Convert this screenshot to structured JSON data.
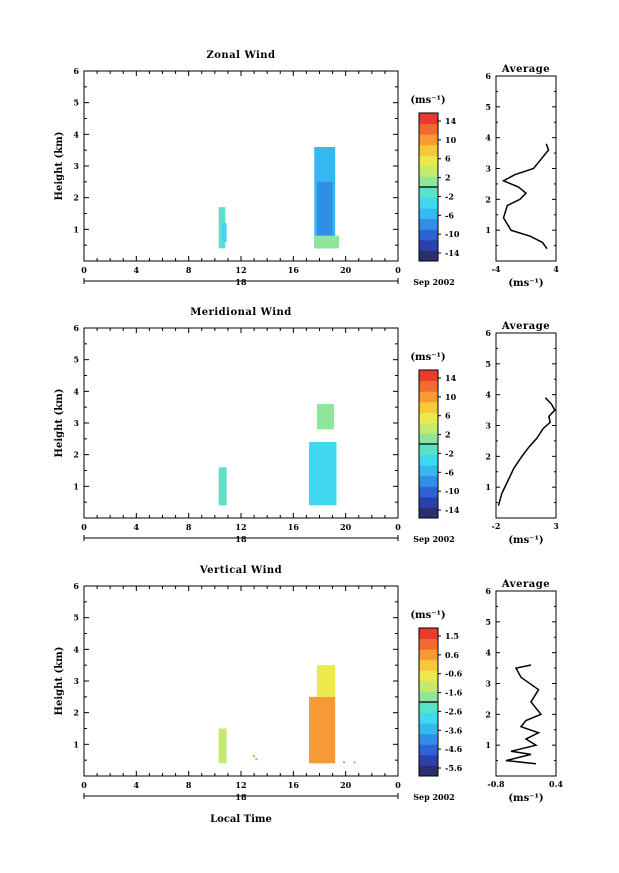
{
  "x_axis_title": "Local Time",
  "date_label": "Sep 2002",
  "day_label": "18",
  "panels": [
    {
      "title": "Zonal Wind",
      "ylabel": "Height (km)",
      "xticks": [
        "0",
        "4",
        "8",
        "12",
        "16",
        "20",
        "0"
      ],
      "yticks": [
        "1",
        "2",
        "3",
        "4",
        "5",
        "6"
      ],
      "colorbar": {
        "unit": "(ms⁻¹)",
        "labels": [
          "14",
          "10",
          "6",
          "2",
          "-2",
          "-6",
          "-10",
          "-14"
        ]
      },
      "average": {
        "title": "Average",
        "xlabel": "(ms⁻¹)",
        "xticks": [
          "-4",
          "4"
        ],
        "yticks": [
          "1",
          "2",
          "3",
          "4",
          "5",
          "6"
        ]
      }
    },
    {
      "title": "Meridional Wind",
      "ylabel": "Height (km)",
      "xticks": [
        "0",
        "4",
        "8",
        "12",
        "16",
        "20",
        "0"
      ],
      "yticks": [
        "1",
        "2",
        "3",
        "4",
        "5",
        "6"
      ],
      "colorbar": {
        "unit": "(ms⁻¹)",
        "labels": [
          "14",
          "10",
          "6",
          "2",
          "-2",
          "-6",
          "-10",
          "-14"
        ]
      },
      "average": {
        "title": "Average",
        "xlabel": "(ms⁻¹)",
        "xticks": [
          "-2",
          "3"
        ],
        "yticks": [
          "1",
          "2",
          "3",
          "4",
          "5",
          "6"
        ]
      }
    },
    {
      "title": "Vertical Wind",
      "ylabel": "Height (km)",
      "xticks": [
        "0",
        "4",
        "8",
        "12",
        "16",
        "20",
        "0"
      ],
      "yticks": [
        "1",
        "2",
        "3",
        "4",
        "5",
        "6"
      ],
      "colorbar": {
        "unit": "(ms⁻¹)",
        "labels": [
          "1.5",
          "0.6",
          "-0.6",
          "-1.6",
          "-2.6",
          "-3.6",
          "-4.6",
          "-5.6"
        ]
      },
      "average": {
        "title": "Average",
        "xlabel": "(ms⁻¹)",
        "xticks": [
          "-0.8",
          "0.4"
        ],
        "yticks": [
          "1",
          "2",
          "3",
          "4",
          "5",
          "6"
        ]
      }
    }
  ],
  "chart_data": [
    {
      "type": "heatmap",
      "title": "Zonal Wind",
      "ylabel": "Height (km)",
      "xlim": [
        0,
        24
      ],
      "ylim": [
        0.4,
        6
      ],
      "blobs": [
        {
          "t0": 10.3,
          "t1": 10.8,
          "h0": 0.4,
          "h1": 1.7,
          "value": -2
        },
        {
          "t0": 10.5,
          "t1": 10.9,
          "h0": 0.6,
          "h1": 1.2,
          "value": -4
        },
        {
          "t0": 17.6,
          "t1": 19.2,
          "h0": 0.4,
          "h1": 3.6,
          "value": -5
        },
        {
          "t0": 17.8,
          "t1": 19.0,
          "h0": 0.7,
          "h1": 2.5,
          "value": -7
        },
        {
          "t0": 18.2,
          "t1": 19.0,
          "h0": 1.0,
          "h1": 2.0,
          "value": -9
        },
        {
          "t0": 17.6,
          "t1": 19.5,
          "h0": 0.4,
          "h1": 0.8,
          "value": 1
        }
      ],
      "average": {
        "x": [
          2.8,
          2.2,
          0.6,
          -2.0,
          -3.0,
          -2.5,
          -0.8,
          0.0,
          -1.0,
          -3.0,
          -1.5,
          1.0,
          2.0,
          3.0,
          2.7
        ],
        "y": [
          0.4,
          0.6,
          0.8,
          1.0,
          1.4,
          1.8,
          2.0,
          2.2,
          2.4,
          2.6,
          2.8,
          3.0,
          3.3,
          3.6,
          3.8
        ],
        "xlim": [
          -4,
          4
        ]
      }
    },
    {
      "type": "heatmap",
      "title": "Meridional Wind",
      "ylabel": "Height (km)",
      "xlim": [
        0,
        24
      ],
      "ylim": [
        0.4,
        6
      ],
      "blobs": [
        {
          "t0": 10.3,
          "t1": 10.9,
          "h0": 0.4,
          "h1": 1.6,
          "value": -1
        },
        {
          "t0": 17.2,
          "t1": 19.3,
          "h0": 0.4,
          "h1": 2.4,
          "value": -3
        },
        {
          "t0": 17.4,
          "t1": 18.8,
          "h0": 0.5,
          "h1": 1.6,
          "value": -4
        },
        {
          "t0": 17.8,
          "t1": 19.1,
          "h0": 2.8,
          "h1": 3.6,
          "value": 2
        }
      ],
      "average": {
        "x": [
          -1.8,
          -1.5,
          -1.0,
          -0.5,
          0.2,
          0.8,
          1.5,
          2.0,
          2.6,
          2.5,
          3.0,
          2.7,
          2.2
        ],
        "y": [
          0.4,
          0.8,
          1.2,
          1.6,
          2.0,
          2.3,
          2.6,
          2.9,
          3.1,
          3.3,
          3.5,
          3.7,
          3.9
        ],
        "xlim": [
          -2,
          3.1
        ]
      }
    },
    {
      "type": "heatmap",
      "title": "Vertical Wind",
      "ylabel": "Height (km)",
      "xlim": [
        0,
        24
      ],
      "ylim": [
        0.4,
        6
      ],
      "blobs": [
        {
          "t0": 10.3,
          "t1": 10.9,
          "h0": 0.4,
          "h1": 1.5,
          "value": -1.0
        },
        {
          "t0": 17.2,
          "t1": 19.2,
          "h0": 0.4,
          "h1": 2.5,
          "value": 0.3
        },
        {
          "t0": 17.8,
          "t1": 19.2,
          "h0": 2.5,
          "h1": 3.5,
          "value": -0.3
        }
      ],
      "specks": [
        {
          "t": 13.1,
          "h": 0.5,
          "value": 0.3
        },
        {
          "t": 12.9,
          "h": 0.6,
          "value": 0.3
        },
        {
          "t": 19.8,
          "h": 0.4,
          "value": 0.3
        },
        {
          "t": 20.6,
          "h": 0.4,
          "value": 0.3
        }
      ],
      "average": {
        "x": [
          0.0,
          -0.6,
          -0.1,
          -0.5,
          0.0,
          -0.2,
          0.05,
          -0.3,
          -0.2,
          0.1,
          0.0,
          -0.1,
          0.05,
          -0.3,
          -0.4,
          -0.1
        ],
        "y": [
          0.4,
          0.5,
          0.7,
          0.8,
          1.0,
          1.2,
          1.4,
          1.6,
          1.8,
          2.0,
          2.2,
          2.4,
          2.8,
          3.2,
          3.5,
          3.6
        ],
        "xlim": [
          -0.8,
          0.4
        ]
      }
    }
  ]
}
